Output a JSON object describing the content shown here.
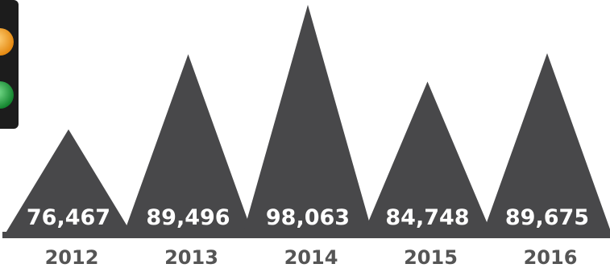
{
  "chart_data": {
    "type": "bar",
    "categories": [
      "2012",
      "2013",
      "2014",
      "2015",
      "2016"
    ],
    "values": [
      76467,
      89496,
      98063,
      84748,
      89675
    ],
    "value_labels": [
      "76,467",
      "89,496",
      "98,063",
      "84,748",
      "89,675"
    ],
    "title": "",
    "xlabel": "",
    "ylabel": "",
    "ylim": [
      0,
      100000
    ],
    "bar_shape": "triangle",
    "legend": "none",
    "grid": false
  },
  "colors": {
    "bar": "#48484a",
    "baseline": "#48484a",
    "value_label": "#ffffff",
    "year_label": "#555555",
    "traffic_light_body": "#1c1c1c",
    "traffic_light_amber": "#f2a229",
    "traffic_light_green": "#2ea84a"
  },
  "decorations": {
    "traffic_light_icon": "traffic-light-icon"
  }
}
